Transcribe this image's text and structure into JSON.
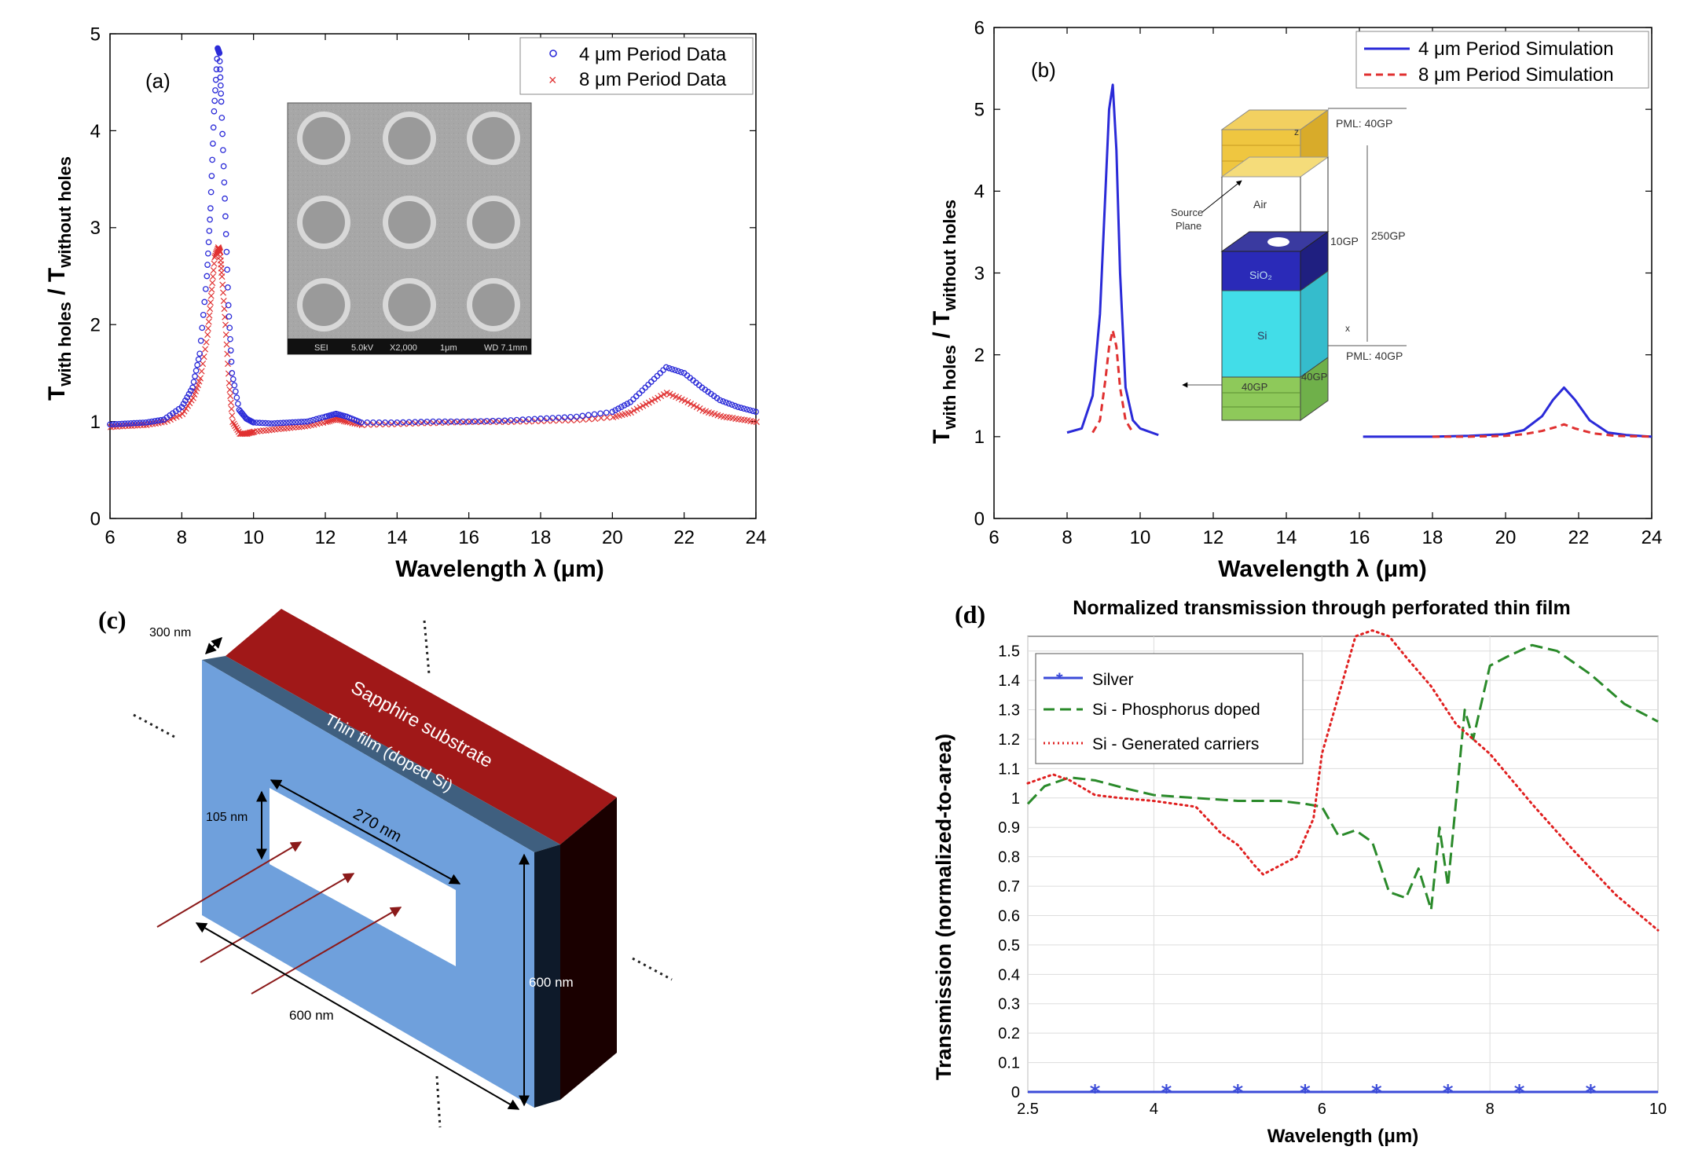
{
  "colors": {
    "blue": "#2a2ad8",
    "red": "#e03030",
    "green": "#2a8a2a",
    "dotred": "#e02020",
    "silver": "#3b4bd8",
    "plate": "#6fa0dc",
    "plate_dark": "#3f5f7f",
    "substrate": "#a01818",
    "substrate_dark": "#1a0000"
  },
  "panel_c": {
    "label": "(c)",
    "dim_thickness": "300 nm",
    "substrate_label": "Sapphire substrate",
    "film_label": "Thin film (doped Si)",
    "dim_slit_height": "105 nm",
    "dim_slit_width": "270 nm",
    "dim_height": "600 nm",
    "dim_width": "600 nm"
  },
  "inset_b": {
    "pml_top": "PML: 40GP",
    "air": "Air",
    "source_plane_1": "Source",
    "source_plane_2": "Plane",
    "gp10": "10GP",
    "gp250": "250GP",
    "sio2": "SiO₂",
    "si": "Si",
    "pml_bottom": "PML: 40GP",
    "gp40a": "40GP",
    "gp40b": "40GP",
    "z": "z",
    "x": "x"
  },
  "inset_a": {
    "scale_text": [
      "SEI",
      "5.0kV",
      "X2,000",
      "1μm",
      "WD 7.1mm"
    ]
  },
  "chart_data": [
    {
      "type": "scatter",
      "panel": "(a)",
      "title": "",
      "xlabel": "Wavelength λ (μm)",
      "ylabel_main": "T",
      "ylabel_sub1": "with holes",
      "ylabel_mid": " / T",
      "ylabel_sub2": "without holes",
      "xlim": [
        6,
        24
      ],
      "ylim": [
        0,
        5
      ],
      "xticks": [
        6,
        8,
        10,
        12,
        14,
        16,
        18,
        20,
        22,
        24
      ],
      "yticks": [
        0,
        1,
        2,
        3,
        4,
        5
      ],
      "legend": "top-right",
      "series": [
        {
          "name": "4 μm Period Data",
          "marker": "o",
          "color": "#2a2ad8",
          "x": [
            6,
            6.5,
            7,
            7.5,
            8,
            8.3,
            8.5,
            8.7,
            8.8,
            8.9,
            9.0,
            9.05,
            9.1,
            9.2,
            9.3,
            9.4,
            9.6,
            9.8,
            10,
            10.5,
            11,
            11.5,
            12,
            12.3,
            12.6,
            13,
            14,
            15,
            16,
            17,
            18,
            19,
            20,
            20.5,
            21,
            21.5,
            22,
            22.5,
            23,
            23.5,
            24
          ],
          "y": [
            0.97,
            0.98,
            0.99,
            1.02,
            1.15,
            1.35,
            1.7,
            2.5,
            3.2,
            4.2,
            4.85,
            4.8,
            4.3,
            3.3,
            2.2,
            1.5,
            1.12,
            1.03,
            0.99,
            0.98,
            0.99,
            1.0,
            1.05,
            1.08,
            1.05,
            0.99,
            0.99,
            1.0,
            1.0,
            1.01,
            1.03,
            1.05,
            1.1,
            1.2,
            1.38,
            1.56,
            1.5,
            1.35,
            1.22,
            1.15,
            1.1
          ]
        },
        {
          "name": "8 μm Period Data",
          "marker": "x",
          "color": "#e03030",
          "x": [
            6,
            6.5,
            7,
            7.5,
            8,
            8.3,
            8.5,
            8.7,
            8.8,
            8.9,
            9.0,
            9.05,
            9.1,
            9.2,
            9.3,
            9.4,
            9.6,
            9.8,
            10,
            10.5,
            11,
            11.5,
            12,
            12.3,
            12.6,
            13,
            14,
            15,
            16,
            17,
            18,
            19,
            20,
            20.5,
            21,
            21.5,
            22,
            22.5,
            23,
            23.5,
            24
          ],
          "y": [
            0.95,
            0.96,
            0.97,
            1.0,
            1.08,
            1.25,
            1.45,
            1.9,
            2.3,
            2.7,
            2.8,
            2.75,
            2.5,
            2.0,
            1.4,
            1.0,
            0.88,
            0.88,
            0.9,
            0.92,
            0.94,
            0.96,
            1.0,
            1.03,
            1.0,
            0.97,
            0.98,
            0.99,
            1.0,
            1.0,
            1.01,
            1.02,
            1.05,
            1.1,
            1.2,
            1.3,
            1.22,
            1.12,
            1.06,
            1.03,
            1.0
          ]
        }
      ]
    },
    {
      "type": "line",
      "panel": "(b)",
      "title": "",
      "xlabel": "Wavelength λ (μm)",
      "ylabel_main": "T",
      "ylabel_sub1": "with holes",
      "ylabel_mid": " / T",
      "ylabel_sub2": "without holes",
      "xlim": [
        6,
        24
      ],
      "ylim": [
        0,
        6
      ],
      "xticks": [
        6,
        8,
        10,
        12,
        14,
        16,
        18,
        20,
        22,
        24
      ],
      "yticks": [
        0,
        1,
        2,
        3,
        4,
        5,
        6
      ],
      "legend": "top-right",
      "series": [
        {
          "name": "4 μm Period Simulation",
          "style": "solid",
          "color": "#2a2ad8",
          "segments": [
            {
              "x": [
                8,
                8.4,
                8.7,
                8.9,
                9.05,
                9.15,
                9.25,
                9.35,
                9.45,
                9.6,
                9.8,
                10,
                10.5
              ],
              "y": [
                1.05,
                1.1,
                1.5,
                2.5,
                4.0,
                5.0,
                5.3,
                4.5,
                3.0,
                1.6,
                1.2,
                1.1,
                1.02
              ]
            },
            {
              "x": [
                16.1,
                17,
                18,
                19,
                20,
                20.5,
                21,
                21.3,
                21.6,
                21.9,
                22.3,
                22.8,
                23.3,
                24
              ],
              "y": [
                1.0,
                1.0,
                1.0,
                1.01,
                1.03,
                1.08,
                1.25,
                1.45,
                1.6,
                1.45,
                1.2,
                1.05,
                1.02,
                1.0
              ]
            }
          ]
        },
        {
          "name": "8 μm Period Simulation",
          "style": "dashed",
          "color": "#e03030",
          "segments": [
            {
              "x": [
                8.7,
                8.9,
                9.05,
                9.15,
                9.25,
                9.35,
                9.45,
                9.6,
                9.8
              ],
              "y": [
                1.05,
                1.2,
                1.7,
                2.1,
                2.3,
                2.1,
                1.6,
                1.2,
                1.05
              ]
            },
            {
              "x": [
                18,
                19,
                20,
                20.5,
                21,
                21.4,
                21.6,
                21.9,
                22.4,
                23,
                24
              ],
              "y": [
                1.0,
                1.0,
                1.01,
                1.03,
                1.07,
                1.12,
                1.15,
                1.1,
                1.04,
                1.01,
                1.0
              ]
            }
          ]
        }
      ]
    },
    {
      "type": "line",
      "panel": "(d)",
      "title": "Normalized transmission through perforated thin film",
      "xlabel": "Wavelength (μm)",
      "ylabel": "Transmission (normalized-to-area)",
      "xlim": [
        2.5,
        10
      ],
      "ylim": [
        0,
        1.55
      ],
      "xticks": [
        2.5,
        4,
        6,
        8,
        10
      ],
      "yticks": [
        0,
        0.1,
        0.2,
        0.3,
        0.4,
        0.5,
        0.6,
        0.7,
        0.8,
        0.9,
        1,
        1.1,
        1.2,
        1.3,
        1.4,
        1.5
      ],
      "ytick_labels": [
        "0",
        "0.1",
        "0.2",
        "0.3",
        "0.4",
        "0.5",
        "0.6",
        "0.7",
        "0.8",
        "0.9",
        "1",
        "1.1",
        "1.2",
        "1.3",
        "1.4",
        "1.5"
      ],
      "xtick_labels": [
        "2.5",
        "4",
        "6",
        "8",
        "10"
      ],
      "legend": "top-left",
      "series": [
        {
          "name": "Silver",
          "style": "solid-star",
          "color": "#3b4bd8",
          "x": [
            2.5,
            3.3,
            4.15,
            5.0,
            5.8,
            6.65,
            7.5,
            8.35,
            9.2,
            10
          ],
          "y": [
            0,
            0,
            0,
            0,
            0,
            0,
            0,
            0,
            0,
            0
          ],
          "marker_x": [
            3.3,
            4.15,
            5.0,
            5.8,
            6.65,
            7.5,
            8.35,
            9.2
          ]
        },
        {
          "name": "Si - Phosphorus doped",
          "style": "dashed",
          "color": "#2a8a2a",
          "x": [
            2.5,
            2.7,
            3.0,
            3.3,
            3.7,
            4.0,
            4.5,
            5.0,
            5.5,
            5.8,
            6.0,
            6.2,
            6.4,
            6.6,
            6.8,
            7.0,
            7.15,
            7.3,
            7.4,
            7.5,
            7.6,
            7.7,
            7.8,
            8.0,
            8.2,
            8.5,
            8.8,
            9.2,
            9.6,
            10
          ],
          "y": [
            0.98,
            1.04,
            1.07,
            1.06,
            1.03,
            1.01,
            1.0,
            0.99,
            0.99,
            0.98,
            0.97,
            0.87,
            0.89,
            0.85,
            0.68,
            0.66,
            0.76,
            0.62,
            0.9,
            0.7,
            1.0,
            1.3,
            1.2,
            1.45,
            1.48,
            1.52,
            1.5,
            1.42,
            1.32,
            1.26
          ]
        },
        {
          "name": "Si - Generated carriers",
          "style": "dotted",
          "color": "#e02020",
          "x": [
            2.5,
            2.8,
            3.0,
            3.3,
            3.6,
            4.0,
            4.5,
            4.8,
            5.0,
            5.2,
            5.3,
            5.5,
            5.7,
            5.9,
            6.0,
            6.2,
            6.4,
            6.6,
            6.8,
            7.0,
            7.3,
            7.6,
            8.0,
            8.5,
            9.0,
            9.5,
            10
          ],
          "y": [
            1.05,
            1.08,
            1.06,
            1.01,
            1.0,
            0.99,
            0.97,
            0.88,
            0.84,
            0.77,
            0.74,
            0.77,
            0.8,
            0.93,
            1.15,
            1.35,
            1.55,
            1.57,
            1.55,
            1.48,
            1.38,
            1.25,
            1.15,
            0.98,
            0.82,
            0.67,
            0.55
          ]
        }
      ]
    }
  ]
}
